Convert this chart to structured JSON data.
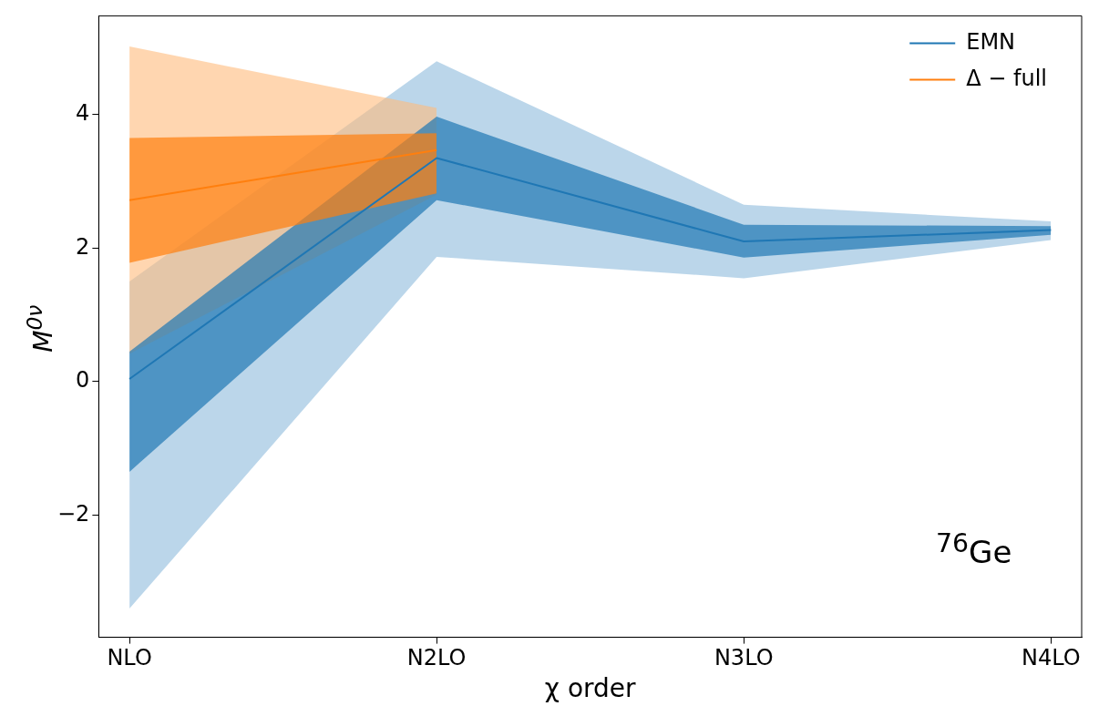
{
  "chart_data": {
    "type": "line",
    "xlabel": "χ order",
    "ylabel": "M$^{0ν}$",
    "categories": [
      "NLO",
      "N2LO",
      "N3LO",
      "N4LO"
    ],
    "series": [
      {
        "color": "#8ebbdc",
        "values": [
          null,
          null,
          null,
          null
        ],
        "lower": [
          -3.4,
          1.87,
          1.55,
          2.12
        ],
        "upper": [
          1.5,
          4.8,
          2.65,
          2.4
        ]
      },
      {
        "color": "#ffbb7b",
        "values": [
          null,
          null,
          null,
          null
        ],
        "lower": [
          0.42,
          2.8,
          null,
          null
        ],
        "upper": [
          5.02,
          4.1,
          null,
          null
        ]
      },
      {
        "name": "EMN",
        "color": "#1f77b4",
        "values": [
          0.04,
          3.35,
          2.1,
          2.27
        ],
        "lower": [
          -1.35,
          2.72,
          1.86,
          2.2
        ],
        "upper": [
          0.45,
          3.97,
          2.35,
          2.33
        ]
      },
      {
        "name": "Δ − full",
        "color": "#ff7f0e",
        "values": [
          2.72,
          3.47,
          null,
          null
        ],
        "lower": [
          1.78,
          2.82,
          null,
          null
        ],
        "upper": [
          3.65,
          3.72,
          null,
          null
        ]
      }
    ],
    "ylim": [
      -3.83,
      5.48
    ],
    "yticks": [
      -2,
      0,
      2,
      4
    ],
    "legend": "top right",
    "annotations": [
      "$^{76}$Ge"
    ]
  }
}
